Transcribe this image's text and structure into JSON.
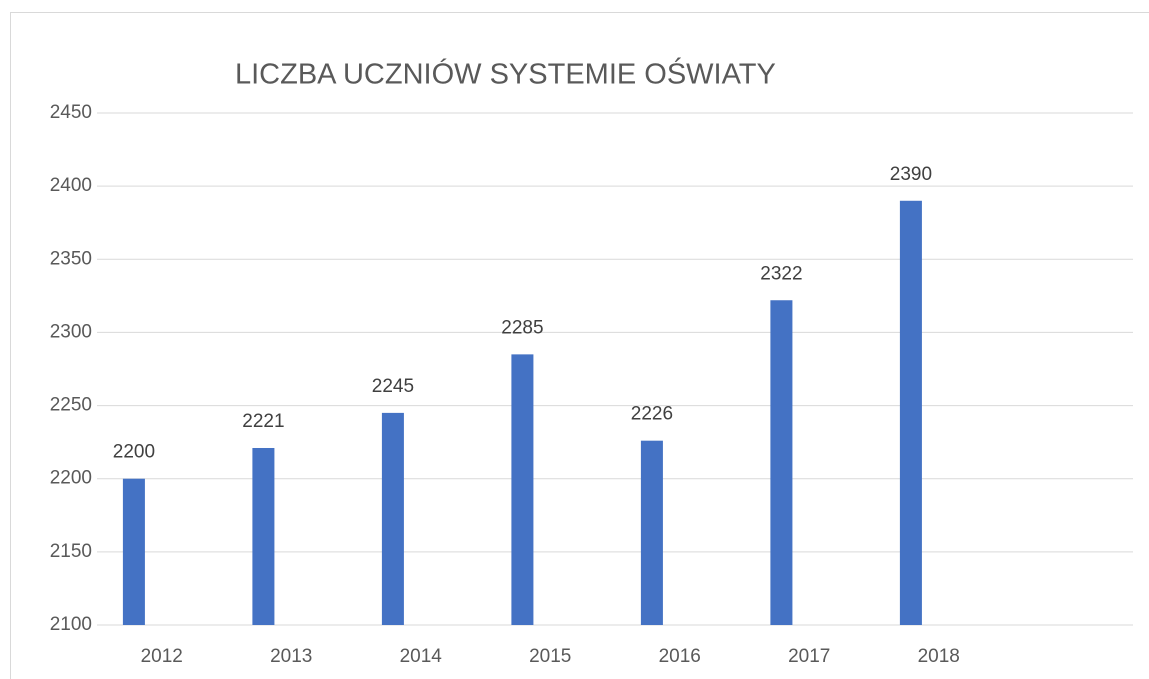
{
  "chart_data": {
    "type": "bar",
    "title": "LICZBA UCZNIÓW SYSTEMIE OŚWIATY",
    "categories": [
      "2012",
      "2013",
      "2014",
      "2015",
      "2016",
      "2017",
      "2018",
      null
    ],
    "values": [
      2200,
      2221,
      2245,
      2285,
      2226,
      2322,
      2390,
      null
    ],
    "color": "#4472c4",
    "ylim": [
      2100,
      2450
    ],
    "yticks": [
      2100,
      2150,
      2200,
      2250,
      2300,
      2350,
      2400,
      2450
    ],
    "grid": true
  }
}
